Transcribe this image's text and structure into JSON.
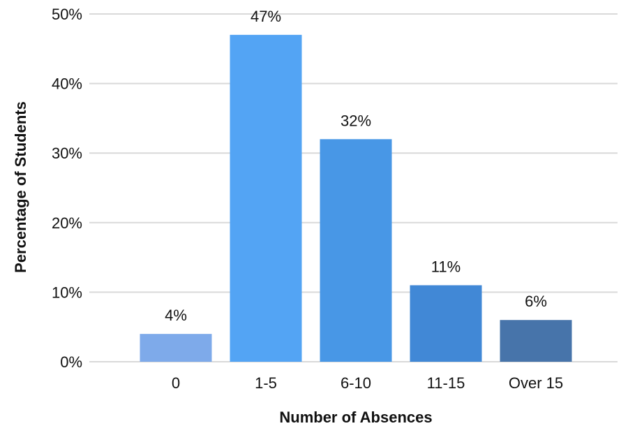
{
  "chart_data": {
    "type": "bar",
    "title": "",
    "xlabel": "Number of Absences",
    "ylabel": "Percentage of Students",
    "categories": [
      "0",
      "1-5",
      "6-10",
      "11-15",
      "Over 15"
    ],
    "values": [
      4,
      47,
      32,
      11,
      6
    ],
    "data_labels": [
      "4%",
      "47%",
      "32%",
      "11%",
      "6%"
    ],
    "bar_colors": [
      "#7eaaea",
      "#53a4f4",
      "#4897e6",
      "#4188d6",
      "#4774aa"
    ],
    "ylim": [
      0,
      50
    ],
    "yticks": [
      0,
      10,
      20,
      30,
      40,
      50
    ],
    "ytick_labels": [
      "0%",
      "10%",
      "20%",
      "30%",
      "40%",
      "50%"
    ],
    "grid": true,
    "legend": "none"
  }
}
